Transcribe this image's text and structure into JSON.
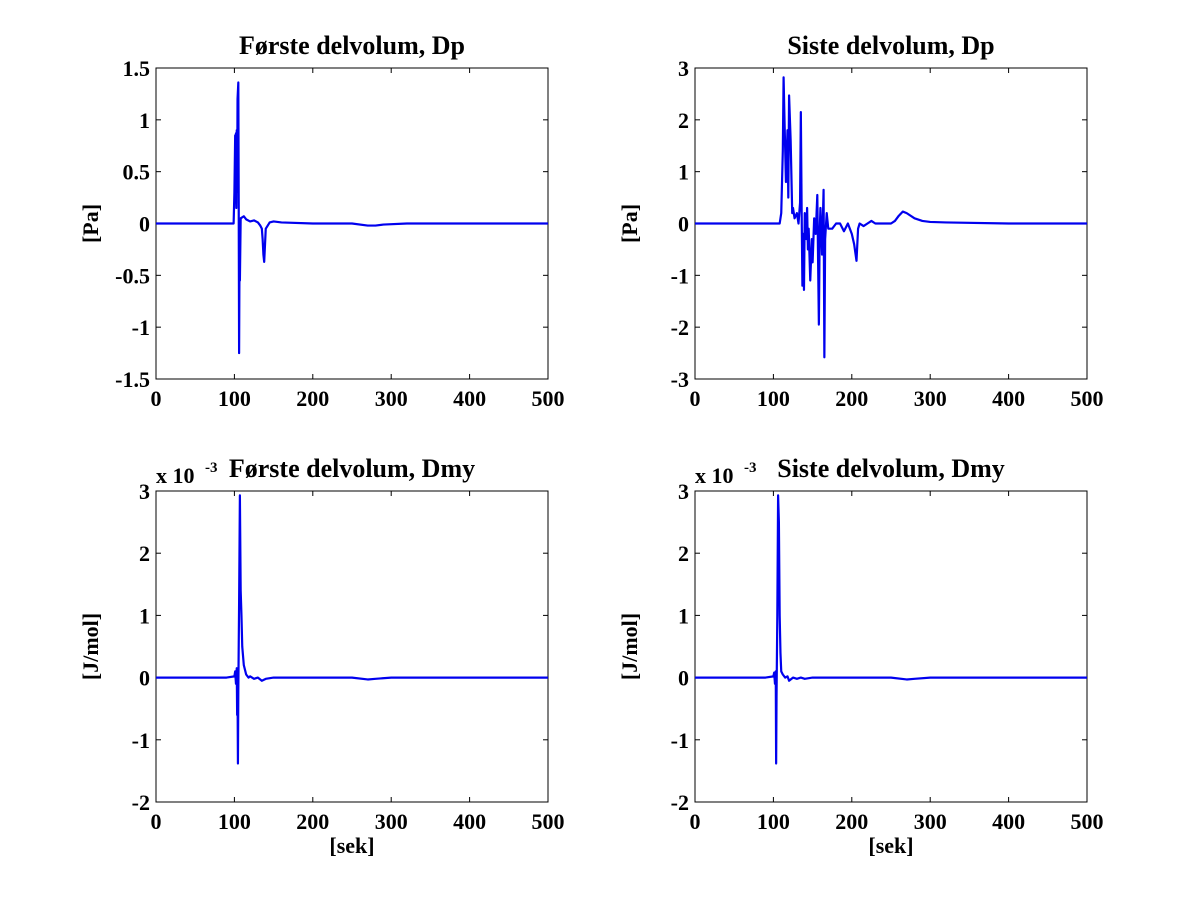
{
  "chart_data": [
    {
      "type": "line",
      "title": "Første delvolum, Dp",
      "xlabel": "",
      "ylabel": "[Pa]",
      "exponent_label": "",
      "xlim": [
        0,
        500
      ],
      "ylim": [
        -1.5,
        1.5
      ],
      "xticks": [
        0,
        100,
        200,
        300,
        400,
        500
      ],
      "yticks": [
        -1.5,
        -1,
        -0.5,
        0,
        0.5,
        1,
        1.5
      ],
      "xtick_labels": [
        "0",
        "100",
        "200",
        "300",
        "400",
        "500"
      ],
      "ytick_labels": [
        "-1.5",
        "-1",
        "-0.5",
        "0",
        "0.5",
        "1",
        "1.5"
      ],
      "color": "#0000ee",
      "series": [
        {
          "x": [
            0,
            60,
            95,
            99,
            100,
            101,
            101.5,
            102,
            102.5,
            103,
            103.5,
            104,
            105,
            105.5,
            106,
            106.5,
            107,
            108,
            110,
            112,
            115,
            120,
            125,
            130,
            133,
            135,
            136,
            137,
            138,
            140,
            145,
            150,
            160,
            200,
            250,
            270,
            280,
            290,
            320,
            400,
            450,
            500
          ],
          "y": [
            0,
            0,
            0,
            0,
            0.3,
            0.85,
            0.4,
            0.87,
            0.15,
            0.9,
            0.3,
            1.2,
            1.36,
            0.2,
            -1.25,
            -0.3,
            -0.55,
            0.05,
            0.06,
            0.07,
            0.04,
            0.02,
            0.03,
            0.01,
            -0.02,
            -0.05,
            -0.15,
            -0.3,
            -0.37,
            -0.05,
            0.01,
            0.02,
            0.01,
            0.0,
            0.0,
            -0.02,
            -0.02,
            -0.01,
            0.0,
            0.0,
            0.0,
            0.0
          ]
        }
      ]
    },
    {
      "type": "line",
      "title": "Siste delvolum, Dp",
      "xlabel": "",
      "ylabel": "[Pa]",
      "exponent_label": "",
      "xlim": [
        0,
        500
      ],
      "ylim": [
        -3,
        3
      ],
      "xticks": [
        0,
        100,
        200,
        300,
        400,
        500
      ],
      "yticks": [
        -3,
        -2,
        -1,
        0,
        1,
        2,
        3
      ],
      "xtick_labels": [
        "0",
        "100",
        "200",
        "300",
        "400",
        "500"
      ],
      "ytick_labels": [
        "-3",
        "-2",
        "-1",
        "0",
        "1",
        "2",
        "3"
      ],
      "color": "#0000ee",
      "series": [
        {
          "x": [
            0,
            90,
            108,
            110,
            112,
            113,
            114,
            116,
            118,
            119,
            120,
            122,
            124,
            125,
            127,
            130,
            132,
            134,
            135,
            136,
            137,
            138,
            139,
            140,
            142,
            143,
            144,
            145,
            147,
            149,
            150,
            152,
            154,
            156,
            158,
            159,
            160,
            162,
            164,
            165,
            166,
            168,
            170,
            175,
            180,
            185,
            190,
            195,
            200,
            203,
            206,
            208,
            210,
            215,
            220,
            225,
            230,
            240,
            250,
            255,
            260,
            265,
            270,
            280,
            290,
            300,
            320,
            400,
            450,
            500
          ],
          "y": [
            0,
            0,
            0,
            0.2,
            1.4,
            2.82,
            2.1,
            0.8,
            1.8,
            0.5,
            2.47,
            1.6,
            0.2,
            0.3,
            0.1,
            0.2,
            0.0,
            0.4,
            2.15,
            0.3,
            -1.2,
            -0.2,
            -1.28,
            0.2,
            -0.3,
            0.3,
            -0.5,
            -0.1,
            -1.1,
            -0.3,
            -0.75,
            0.1,
            -0.2,
            0.55,
            -1.95,
            -0.2,
            0.3,
            -0.6,
            0.65,
            -2.58,
            -0.3,
            0.2,
            -0.1,
            -0.1,
            0.0,
            0.0,
            -0.15,
            0.0,
            -0.2,
            -0.4,
            -0.72,
            -0.1,
            0.0,
            -0.05,
            0.0,
            0.05,
            0.0,
            0.0,
            0.0,
            0.05,
            0.15,
            0.23,
            0.2,
            0.1,
            0.05,
            0.03,
            0.02,
            0.0,
            0.0,
            0.0
          ]
        }
      ]
    },
    {
      "type": "line",
      "title": "Første delvolum, Dmy",
      "xlabel": "",
      "ylabel": "[J/mol]",
      "exponent_label": "x 10",
      "exponent_power": "-3",
      "xlim": [
        0,
        500
      ],
      "ylim": [
        -2,
        3
      ],
      "xticks": [
        0,
        100,
        200,
        300,
        400,
        500
      ],
      "yticks": [
        -2,
        -1,
        0,
        1,
        2,
        3
      ],
      "xtick_labels": [
        "0",
        "100",
        "200",
        "300",
        "400",
        "500"
      ],
      "ytick_labels": [
        "-2",
        "-1",
        "0",
        "1",
        "2",
        "3"
      ],
      "color": "#0000ee",
      "series": [
        {
          "x": [
            0,
            90,
            100,
            101,
            102,
            103,
            103.5,
            104,
            104.5,
            105,
            106,
            107,
            108,
            109,
            110,
            112,
            115,
            118,
            120,
            125,
            130,
            135,
            140,
            150,
            200,
            250,
            270,
            280,
            300,
            400,
            500
          ],
          "y": [
            0,
            0,
            0.02,
            0.1,
            -0.1,
            0.15,
            -0.6,
            -0.2,
            -1.38,
            -0.2,
            1.2,
            2.93,
            1.4,
            1.0,
            0.5,
            0.2,
            0.05,
            0.0,
            0.02,
            -0.02,
            0.0,
            -0.05,
            -0.02,
            0.0,
            0.0,
            0.0,
            -0.03,
            -0.02,
            0.0,
            0.0,
            0.0
          ]
        }
      ]
    },
    {
      "type": "line",
      "title": "Siste delvolum, Dmy",
      "xlabel": "",
      "ylabel": "[J/mol]",
      "exponent_label": "x 10",
      "exponent_power": "-3",
      "xlim": [
        0,
        500
      ],
      "ylim": [
        -2,
        3
      ],
      "xticks": [
        0,
        100,
        200,
        300,
        400,
        500
      ],
      "yticks": [
        -2,
        -1,
        0,
        1,
        2,
        3
      ],
      "xtick_labels": [
        "0",
        "100",
        "200",
        "300",
        "400",
        "500"
      ],
      "ytick_labels": [
        "-2",
        "-1",
        "0",
        "1",
        "2",
        "3"
      ],
      "color": "#0000ee",
      "series": [
        {
          "x": [
            0,
            90,
            100,
            101,
            102,
            103,
            103.5,
            104,
            105,
            106,
            107,
            108,
            109,
            110,
            112,
            115,
            118,
            120,
            125,
            130,
            135,
            140,
            150,
            200,
            250,
            270,
            280,
            300,
            400,
            500
          ],
          "y": [
            0,
            0,
            0.02,
            0.08,
            -0.1,
            0.1,
            -1.38,
            -0.3,
            1.0,
            2.93,
            2.5,
            1.0,
            0.4,
            0.1,
            0.05,
            0.0,
            0.02,
            -0.05,
            0.0,
            -0.02,
            0.0,
            -0.02,
            0.0,
            0.0,
            0.0,
            -0.03,
            -0.02,
            0.0,
            0.0,
            0.0
          ]
        }
      ]
    }
  ],
  "shared_xlabel": "[sek]"
}
